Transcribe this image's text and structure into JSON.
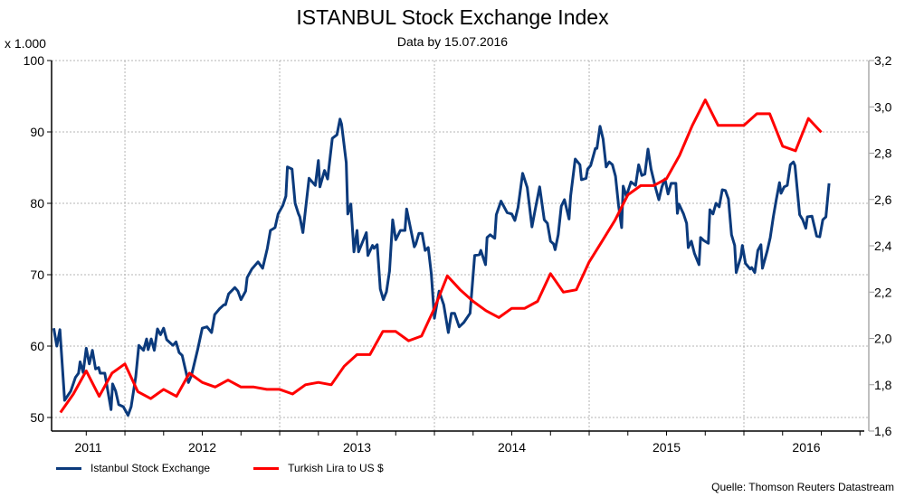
{
  "chart_data": {
    "type": "line",
    "title": "ISTANBUL Stock Exchange Index",
    "subtitle": "Data by 15.07.2016",
    "y_left_unit": "x 1.000",
    "source": "Quelle: Thomson Reuters Datastream",
    "xlim": [
      2011.526,
      2016.807
    ],
    "x_tick_labels": [
      "2011",
      "2012",
      "2013",
      "2014",
      "2015",
      "2016"
    ],
    "y_left": {
      "ylim": [
        48.1,
        100
      ],
      "ticks": [
        50,
        60,
        70,
        80,
        90,
        100
      ]
    },
    "y_right": {
      "ylim": [
        1.6,
        3.2
      ],
      "ticks": [
        1.6,
        1.8,
        2.0,
        2.2,
        2.4,
        2.6,
        2.8,
        3.0,
        3.2
      ],
      "tick_labels": [
        "1,6",
        "1,8",
        "2,0",
        "2,2",
        "2,4",
        "2,6",
        "2,8",
        "3,0",
        "3,2"
      ]
    },
    "grid": true,
    "legend_position": "bottom-left",
    "series": [
      {
        "name": "Istanbul Stock Exchange",
        "axis": "left",
        "color": "#0b3a7c",
        "x_format": "decimal-year",
        "points": [
          [
            2011.54,
            62.5
          ],
          [
            2011.56,
            60.0
          ],
          [
            2011.58,
            62.3
          ],
          [
            2011.61,
            52.4
          ],
          [
            2011.65,
            53.7
          ],
          [
            2011.68,
            55.6
          ],
          [
            2011.7,
            56.2
          ],
          [
            2011.71,
            57.8
          ],
          [
            2011.73,
            56.3
          ],
          [
            2011.75,
            59.7
          ],
          [
            2011.77,
            57.5
          ],
          [
            2011.79,
            59.4
          ],
          [
            2011.81,
            56.8
          ],
          [
            2011.83,
            57.0
          ],
          [
            2011.84,
            56.2
          ],
          [
            2011.87,
            56.2
          ],
          [
            2011.91,
            51.1
          ],
          [
            2011.92,
            54.7
          ],
          [
            2011.94,
            53.7
          ],
          [
            2011.96,
            51.8
          ],
          [
            2011.99,
            51.5
          ],
          [
            2012.02,
            50.3
          ],
          [
            2012.04,
            51.5
          ],
          [
            2012.07,
            55.7
          ],
          [
            2012.09,
            60.1
          ],
          [
            2012.12,
            59.4
          ],
          [
            2012.14,
            61.0
          ],
          [
            2012.15,
            59.5
          ],
          [
            2012.17,
            61.0
          ],
          [
            2012.19,
            59.4
          ],
          [
            2012.21,
            62.4
          ],
          [
            2012.23,
            61.6
          ],
          [
            2012.25,
            62.5
          ],
          [
            2012.27,
            60.9
          ],
          [
            2012.31,
            60.1
          ],
          [
            2012.33,
            60.6
          ],
          [
            2012.35,
            59.1
          ],
          [
            2012.37,
            58.7
          ],
          [
            2012.41,
            54.9
          ],
          [
            2012.43,
            55.9
          ],
          [
            2012.47,
            59.5
          ],
          [
            2012.5,
            62.5
          ],
          [
            2012.53,
            62.7
          ],
          [
            2012.56,
            61.9
          ],
          [
            2012.58,
            64.4
          ],
          [
            2012.61,
            65.2
          ],
          [
            2012.64,
            65.8
          ],
          [
            2012.65,
            65.8
          ],
          [
            2012.67,
            67.3
          ],
          [
            2012.71,
            68.2
          ],
          [
            2012.73,
            67.7
          ],
          [
            2012.75,
            66.5
          ],
          [
            2012.78,
            67.7
          ],
          [
            2012.79,
            69.6
          ],
          [
            2012.82,
            70.8
          ],
          [
            2012.86,
            71.8
          ],
          [
            2012.89,
            70.9
          ],
          [
            2012.92,
            73.7
          ],
          [
            2012.94,
            76.2
          ],
          [
            2012.97,
            76.6
          ],
          [
            2012.99,
            78.5
          ],
          [
            2013.02,
            79.7
          ],
          [
            2013.04,
            81.0
          ],
          [
            2013.05,
            85.1
          ],
          [
            2013.08,
            84.8
          ],
          [
            2013.1,
            80.0
          ],
          [
            2013.12,
            78.6
          ],
          [
            2013.13,
            78.1
          ],
          [
            2013.15,
            75.9
          ],
          [
            2013.19,
            83.5
          ],
          [
            2013.23,
            82.5
          ],
          [
            2013.25,
            86.0
          ],
          [
            2013.26,
            82.3
          ],
          [
            2013.29,
            84.6
          ],
          [
            2013.31,
            83.4
          ],
          [
            2013.34,
            89.1
          ],
          [
            2013.37,
            89.6
          ],
          [
            2013.39,
            91.8
          ],
          [
            2013.4,
            91.1
          ],
          [
            2013.43,
            85.7
          ],
          [
            2013.44,
            78.5
          ],
          [
            2013.46,
            79.9
          ],
          [
            2013.48,
            73.2
          ],
          [
            2013.5,
            76.2
          ],
          [
            2013.51,
            73.2
          ],
          [
            2013.56,
            75.9
          ],
          [
            2013.57,
            72.7
          ],
          [
            2013.6,
            74.1
          ],
          [
            2013.61,
            73.7
          ],
          [
            2013.63,
            74.2
          ],
          [
            2013.65,
            68.0
          ],
          [
            2013.67,
            66.5
          ],
          [
            2013.69,
            67.6
          ],
          [
            2013.71,
            70.5
          ],
          [
            2013.73,
            77.7
          ],
          [
            2013.75,
            74.9
          ],
          [
            2013.78,
            76.2
          ],
          [
            2013.81,
            76.2
          ],
          [
            2013.82,
            79.2
          ],
          [
            2013.87,
            73.9
          ],
          [
            2013.88,
            74.3
          ],
          [
            2013.9,
            75.8
          ],
          [
            2013.92,
            75.8
          ],
          [
            2013.94,
            73.4
          ],
          [
            2013.96,
            73.8
          ],
          [
            2013.98,
            70.1
          ],
          [
            2014.0,
            63.9
          ],
          [
            2014.03,
            67.7
          ],
          [
            2014.06,
            65.8
          ],
          [
            2014.09,
            61.9
          ],
          [
            2014.11,
            64.6
          ],
          [
            2014.13,
            64.6
          ],
          [
            2014.16,
            62.7
          ],
          [
            2014.19,
            63.3
          ],
          [
            2014.23,
            64.6
          ],
          [
            2014.26,
            72.7
          ],
          [
            2014.29,
            72.8
          ],
          [
            2014.3,
            73.4
          ],
          [
            2014.33,
            71.4
          ],
          [
            2014.34,
            75.2
          ],
          [
            2014.36,
            75.6
          ],
          [
            2014.39,
            75.1
          ],
          [
            2014.4,
            78.4
          ],
          [
            2014.43,
            80.3
          ],
          [
            2014.47,
            78.7
          ],
          [
            2014.5,
            78.5
          ],
          [
            2014.52,
            77.6
          ],
          [
            2014.54,
            79.4
          ],
          [
            2014.57,
            84.2
          ],
          [
            2014.6,
            82.2
          ],
          [
            2014.63,
            76.7
          ],
          [
            2014.65,
            79.0
          ],
          [
            2014.68,
            82.3
          ],
          [
            2014.71,
            77.7
          ],
          [
            2014.73,
            77.2
          ],
          [
            2014.75,
            74.7
          ],
          [
            2014.77,
            74.3
          ],
          [
            2014.78,
            73.5
          ],
          [
            2014.8,
            75.6
          ],
          [
            2014.82,
            79.6
          ],
          [
            2014.84,
            80.5
          ],
          [
            2014.87,
            77.8
          ],
          [
            2014.88,
            81.0
          ],
          [
            2014.91,
            86.2
          ],
          [
            2014.94,
            85.4
          ],
          [
            2014.95,
            83.3
          ],
          [
            2014.98,
            83.5
          ],
          [
            2014.99,
            84.8
          ],
          [
            2015.01,
            85.3
          ],
          [
            2015.04,
            87.7
          ],
          [
            2015.05,
            87.7
          ],
          [
            2015.07,
            90.8
          ],
          [
            2015.09,
            89.0
          ],
          [
            2015.11,
            85.1
          ],
          [
            2015.13,
            85.8
          ],
          [
            2015.15,
            85.4
          ],
          [
            2015.17,
            83.8
          ],
          [
            2015.19,
            79.7
          ],
          [
            2015.21,
            76.6
          ],
          [
            2015.22,
            82.4
          ],
          [
            2015.24,
            81.0
          ],
          [
            2015.27,
            83.0
          ],
          [
            2015.3,
            82.5
          ],
          [
            2015.32,
            85.4
          ],
          [
            2015.34,
            83.9
          ],
          [
            2015.36,
            84.1
          ],
          [
            2015.38,
            87.6
          ],
          [
            2015.4,
            84.8
          ],
          [
            2015.43,
            82.1
          ],
          [
            2015.45,
            80.5
          ],
          [
            2015.47,
            82.3
          ],
          [
            2015.49,
            83.4
          ],
          [
            2015.51,
            81.3
          ],
          [
            2015.53,
            82.8
          ],
          [
            2015.56,
            82.8
          ],
          [
            2015.57,
            78.6
          ],
          [
            2015.58,
            79.9
          ],
          [
            2015.61,
            78.5
          ],
          [
            2015.63,
            77.2
          ],
          [
            2015.64,
            73.8
          ],
          [
            2015.66,
            74.7
          ],
          [
            2015.68,
            73.0
          ],
          [
            2015.71,
            71.4
          ],
          [
            2015.72,
            75.2
          ],
          [
            2015.74,
            74.8
          ],
          [
            2015.77,
            74.4
          ],
          [
            2015.78,
            79.1
          ],
          [
            2015.8,
            78.5
          ],
          [
            2015.82,
            80.0
          ],
          [
            2015.84,
            79.5
          ],
          [
            2015.86,
            81.9
          ],
          [
            2015.88,
            81.8
          ],
          [
            2015.9,
            80.6
          ],
          [
            2015.92,
            75.6
          ],
          [
            2015.94,
            74.1
          ],
          [
            2015.95,
            70.3
          ],
          [
            2015.98,
            72.5
          ],
          [
            2015.99,
            74.1
          ],
          [
            2016.01,
            71.6
          ],
          [
            2016.04,
            70.8
          ],
          [
            2016.05,
            71.0
          ],
          [
            2016.07,
            70.3
          ],
          [
            2016.09,
            73.4
          ],
          [
            2016.11,
            74.2
          ],
          [
            2016.12,
            70.9
          ],
          [
            2016.15,
            73.3
          ],
          [
            2016.17,
            75.2
          ],
          [
            2016.19,
            78.1
          ],
          [
            2016.21,
            80.6
          ],
          [
            2016.23,
            82.9
          ],
          [
            2016.24,
            81.4
          ],
          [
            2016.26,
            82.3
          ],
          [
            2016.28,
            82.5
          ],
          [
            2016.3,
            85.4
          ],
          [
            2016.32,
            85.8
          ],
          [
            2016.33,
            85.3
          ],
          [
            2016.36,
            78.4
          ],
          [
            2016.38,
            77.7
          ],
          [
            2016.4,
            76.5
          ],
          [
            2016.41,
            78.1
          ],
          [
            2016.44,
            78.2
          ],
          [
            2016.47,
            75.4
          ],
          [
            2016.49,
            75.3
          ],
          [
            2016.51,
            77.7
          ],
          [
            2016.53,
            78.1
          ],
          [
            2016.55,
            82.8
          ]
        ]
      },
      {
        "name": "Turkish Lira to US $",
        "axis": "right",
        "color": "#ff0000",
        "x_format": "year-month",
        "dates": [
          "2011-08",
          "2011-09",
          "2011-10",
          "2011-11",
          "2011-12",
          "2012-01",
          "2012-02",
          "2012-03",
          "2012-04",
          "2012-05",
          "2012-06",
          "2012-07",
          "2012-08",
          "2012-09",
          "2012-10",
          "2012-11",
          "2012-12",
          "2013-01",
          "2013-02",
          "2013-03",
          "2013-04",
          "2013-05",
          "2013-06",
          "2013-07",
          "2013-08",
          "2013-09",
          "2013-10",
          "2013-11",
          "2013-12",
          "2014-01",
          "2014-02",
          "2014-03",
          "2014-04",
          "2014-05",
          "2014-06",
          "2014-07",
          "2014-08",
          "2014-09",
          "2014-10",
          "2014-11",
          "2014-12",
          "2015-01",
          "2015-02",
          "2015-03",
          "2015-04",
          "2015-05",
          "2015-06",
          "2015-07",
          "2015-08",
          "2015-09",
          "2015-10",
          "2015-11",
          "2015-12",
          "2016-01",
          "2016-02",
          "2016-03",
          "2016-04",
          "2016-05",
          "2016-06",
          "2016-07"
        ],
        "values": [
          1.68,
          1.76,
          1.86,
          1.75,
          1.85,
          1.89,
          1.77,
          1.74,
          1.78,
          1.75,
          1.85,
          1.81,
          1.79,
          1.82,
          1.79,
          1.79,
          1.78,
          1.78,
          1.76,
          1.8,
          1.81,
          1.8,
          1.88,
          1.93,
          1.93,
          2.03,
          2.03,
          1.99,
          2.01,
          2.13,
          2.27,
          2.21,
          2.16,
          2.12,
          2.09,
          2.13,
          2.13,
          2.16,
          2.28,
          2.2,
          2.21,
          2.33,
          2.42,
          2.51,
          2.62,
          2.66,
          2.66,
          2.69,
          2.79,
          2.92,
          3.03,
          2.92,
          2.92,
          2.92,
          2.97,
          2.97,
          2.83,
          2.81,
          2.95,
          2.89
        ]
      }
    ]
  }
}
